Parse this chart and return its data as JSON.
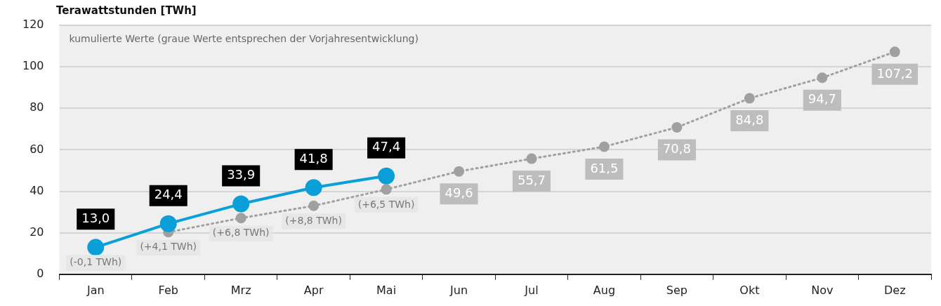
{
  "chart_data": {
    "type": "line",
    "ylabel": "Terawattstunden [TWh]",
    "categories": [
      "Jan",
      "Feb",
      "Mrz",
      "Apr",
      "Mai",
      "Jun",
      "Jul",
      "Aug",
      "Sep",
      "Okt",
      "Nov",
      "Dez"
    ],
    "series": [
      {
        "color": "#a0a0a0",
        "line_style": "dotted",
        "values": [
          null,
          20.3,
          27.1,
          33.0,
          40.9,
          49.6,
          55.7,
          61.5,
          70.8,
          84.8,
          94.7,
          107.2
        ],
        "value_labels": [
          null,
          null,
          null,
          null,
          null,
          "49,6",
          "55,7",
          "61,5",
          "70,8",
          "84,8",
          "94,7",
          "107,2"
        ]
      },
      {
        "color": "#0a9fd8",
        "line_style": "solid",
        "values": [
          13.0,
          24.4,
          33.9,
          41.8,
          47.4,
          null,
          null,
          null,
          null,
          null,
          null,
          null
        ],
        "value_labels": [
          "13,0",
          "24,4",
          "33,9",
          "41,8",
          "47,4",
          null,
          null,
          null,
          null,
          null,
          null,
          null
        ]
      }
    ],
    "ylim": [
      0,
      120
    ],
    "yticks": [
      0,
      20,
      40,
      60,
      80,
      100,
      120
    ],
    "grid": "y",
    "legend": false,
    "marker": "circle",
    "annotations": [
      "kumulierte Werte (graue Werte entsprechen der Vorjahresentwicklung)",
      {
        "text": "(-0,1 TWh)",
        "x": "Jan",
        "y": 13.0
      },
      {
        "text": "(+4,1 TWh)",
        "x": "Feb",
        "y": 20.3
      },
      {
        "text": "(+6,8 TWh)",
        "x": "Mrz",
        "y": 27.1
      },
      {
        "text": "(+8,8 TWh)",
        "x": "Apr",
        "y": 33.0
      },
      {
        "text": "(+6,5 TWh)",
        "x": "Mai",
        "y": 40.9
      }
    ]
  }
}
